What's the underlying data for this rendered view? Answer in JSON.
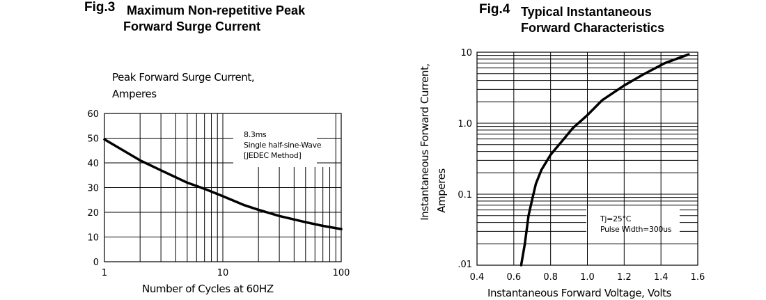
{
  "figures": [
    {
      "number": "Fig.3",
      "title_line1": "Maximum Non-repetitive Peak",
      "title_line2": "Forward Surge Current"
    },
    {
      "number": "Fig.4",
      "title_line1": "Typical Instantaneous",
      "title_line2": "Forward Characteristics"
    }
  ],
  "chart_data": [
    {
      "type": "line",
      "ylabel_line1": "Peak Forward Surge Current,",
      "ylabel_line2": "Amperes",
      "xlabel": "Number of Cycles at 60HZ",
      "x_scale": "log",
      "xlim": [
        1,
        100
      ],
      "ylim": [
        0,
        60
      ],
      "x_ticks": [
        "1",
        "10",
        "100"
      ],
      "y_ticks": [
        "0",
        "10",
        "20",
        "30",
        "40",
        "50",
        "60"
      ],
      "grid": true,
      "annotation": [
        "8.3ms",
        "Single half-sine-Wave",
        "[JEDEC Method]"
      ],
      "x": [
        1,
        2,
        3,
        5,
        7,
        10,
        15,
        20,
        30,
        50,
        70,
        100
      ],
      "y": [
        49.5,
        41,
        37,
        32,
        29.5,
        26.5,
        23,
        21,
        18.5,
        16,
        14.5,
        13.2
      ]
    },
    {
      "type": "line",
      "ylabel_line1": "Instantaneous Forward Current,",
      "ylabel_line2": "Amperes",
      "xlabel": "Instantaneous Forward  Voltage, Volts",
      "y_scale": "log",
      "xlim": [
        0.4,
        1.6
      ],
      "ylim": [
        0.01,
        10
      ],
      "x_ticks": [
        "0.4",
        "0.6",
        "0.8",
        "1.0",
        "1.2",
        "1.4",
        "1.6"
      ],
      "y_ticks": [
        ".01",
        "0.1",
        "1.0",
        "10"
      ],
      "grid": true,
      "annotation": [
        "Tj=25°C",
        "Pulse Width=300us"
      ],
      "x": [
        0.64,
        0.66,
        0.68,
        0.7,
        0.72,
        0.75,
        0.8,
        0.86,
        0.92,
        1.0,
        1.08,
        1.2,
        1.3,
        1.42,
        1.55
      ],
      "y": [
        0.01,
        0.02,
        0.05,
        0.085,
        0.14,
        0.22,
        0.36,
        0.55,
        0.85,
        1.3,
        2.1,
        3.4,
        4.8,
        7.0,
        9.3
      ]
    }
  ]
}
